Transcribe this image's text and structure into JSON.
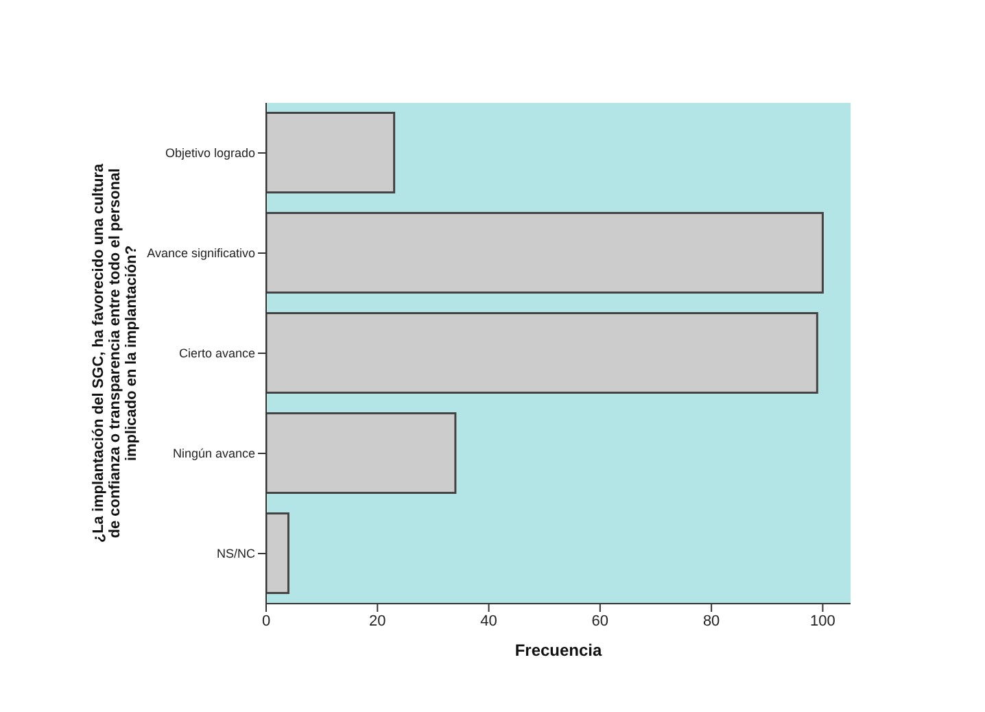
{
  "chart_data": {
    "type": "bar",
    "orientation": "horizontal",
    "ylabel": "¿La implantación del SGC, ha favorecido una cultura de confianza o transparencia entre todo el personal implicado en la implantación?",
    "xlabel": "Frecuencia",
    "categories": [
      "Objetivo logrado",
      "Avance significativo",
      "Cierto avance",
      "Ningún avance",
      "NS/NC"
    ],
    "values": [
      23,
      100,
      99,
      34,
      4
    ],
    "color": "#cccccc",
    "xlim": [
      0,
      105
    ],
    "xticks": [
      0,
      20,
      40,
      60,
      80,
      100
    ],
    "grid": false,
    "legend": false
  }
}
